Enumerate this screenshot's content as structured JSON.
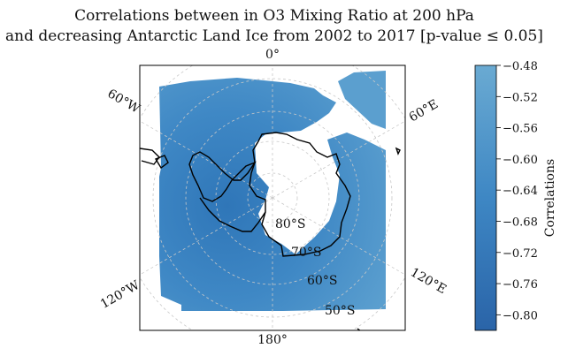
{
  "title": {
    "line1": "Correlations between in O3 Mixing Ratio at 200 hPa",
    "line2": "and decreasing Antarctic Land Ice from 2002 to 2017 [p-value ≤ 0.05]"
  },
  "map": {
    "projection": "south-polar-stereographic",
    "longitude_labels": [
      "0°",
      "60°E",
      "120°E",
      "180°",
      "120°W",
      "60°W"
    ],
    "latitude_labels": [
      "80°S",
      "70°S",
      "60°S",
      "50°S"
    ],
    "gridlines": true,
    "coastlines": true
  },
  "colorbar": {
    "label": "Correlations",
    "ticks": [
      "−0.48",
      "−0.52",
      "−0.56",
      "−0.60",
      "−0.64",
      "−0.68",
      "−0.72",
      "−0.76",
      "−0.80"
    ],
    "range": [
      -0.82,
      -0.48
    ],
    "colors": {
      "low": "#2a64a8",
      "high": "#6aaad2"
    }
  },
  "colors": {
    "field_main": "#3f88c5",
    "field_light": "#5b9fcf",
    "field_dark": "#2f76b8",
    "coastline": "#000000",
    "grid": "#c8c8c8"
  }
}
